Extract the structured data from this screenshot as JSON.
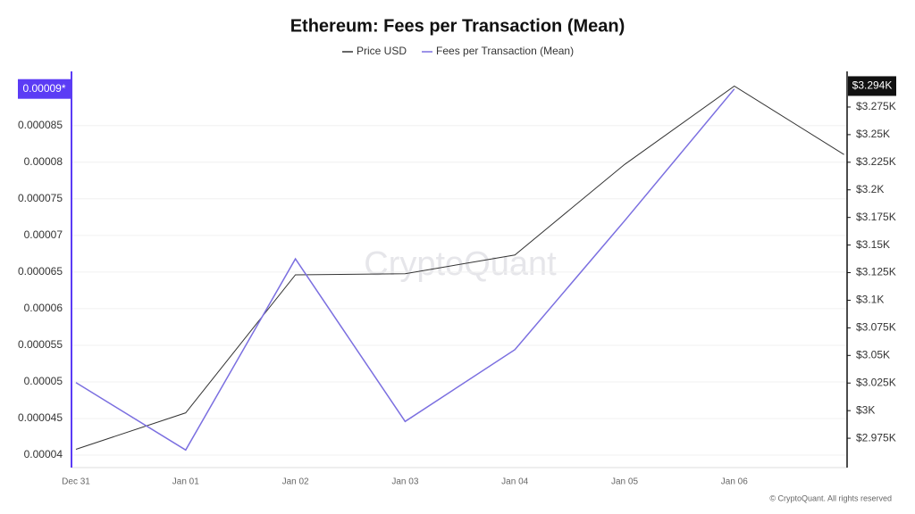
{
  "chart_data": {
    "type": "line",
    "title": "Ethereum: Fees per Transaction (Mean)",
    "categories": [
      "Dec 31",
      "Jan 01",
      "Jan 02",
      "Jan 03",
      "Jan 04",
      "Jan 05",
      "Jan 06",
      null
    ],
    "series": [
      {
        "name": "Price USD",
        "color": "#333333",
        "axis": "y2",
        "values": [
          2965,
          2998,
          3123,
          3124,
          3141,
          3223,
          3294,
          3232
        ]
      },
      {
        "name": "Fees per Transaction (Mean)",
        "color": "#7b6fe0",
        "values": [
          4.99e-05,
          4.07e-05,
          6.68e-05,
          4.46e-05,
          5.44e-05,
          7.2e-05,
          9e-05,
          null
        ]
      }
    ],
    "ylim": [
      3.83e-05,
      9.24e-05
    ],
    "yticks": [
      4e-05,
      4.5e-05,
      5e-05,
      5.5e-05,
      6e-05,
      6.5e-05,
      7e-05,
      7.5e-05,
      8e-05,
      8.5e-05
    ],
    "y2lim": [
      2948.4,
      3307.3
    ],
    "y2ticks": [
      {
        "value": 2975,
        "label": "$2.975K"
      },
      {
        "value": 3000,
        "label": "$3K"
      },
      {
        "value": 3025,
        "label": "$3.025K"
      },
      {
        "value": 3050,
        "label": "$3.05K"
      },
      {
        "value": 3075,
        "label": "$3.075K"
      },
      {
        "value": 3100,
        "label": "$3.1K"
      },
      {
        "value": 3125,
        "label": "$3.125K"
      },
      {
        "value": 3150,
        "label": "$3.15K"
      },
      {
        "value": 3175,
        "label": "$3.175K"
      },
      {
        "value": 3200,
        "label": "$3.2K"
      },
      {
        "value": 3225,
        "label": "$3.225K"
      },
      {
        "value": 3250,
        "label": "$3.25K"
      },
      {
        "value": 3275,
        "label": "$3.275K"
      }
    ],
    "y_marker": {
      "value": 9e-05,
      "label": "0.00009*",
      "color": "#5b3cf5"
    },
    "y2_marker": {
      "value": 3294,
      "label": "$3.294K",
      "color": "#111111"
    },
    "grid": true,
    "watermark": "CryptoQuant",
    "footer": "© CryptoQuant. All rights reserved"
  }
}
